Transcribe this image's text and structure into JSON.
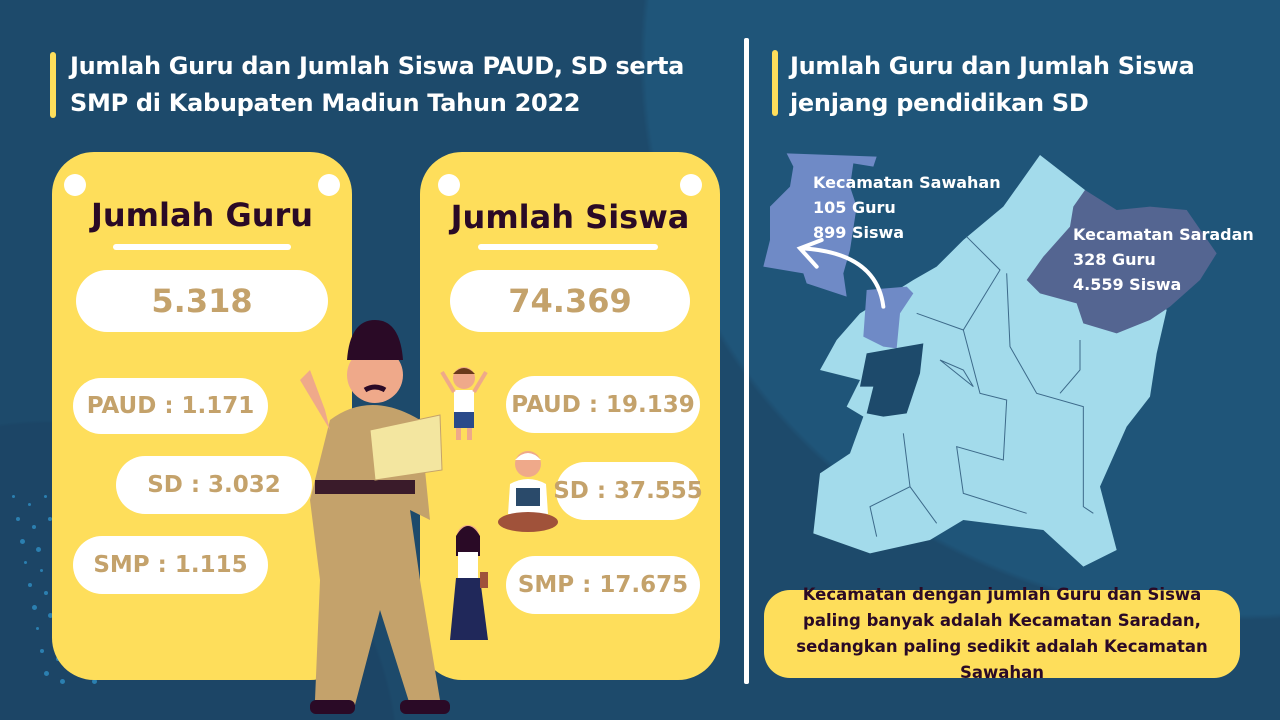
{
  "left": {
    "title": "Jumlah Guru dan Jumlah Siswa PAUD, SD serta SMP di Kabupaten Madiun Tahun 2022",
    "guru_card": {
      "heading": "Jumlah Guru",
      "total": "5.318",
      "items": [
        "PAUD : 1.171",
        "SD : 3.032",
        "SMP : 1.115"
      ]
    },
    "siswa_card": {
      "heading": "Jumlah Siswa",
      "total": "74.369",
      "items": [
        "PAUD : 19.139",
        "SD : 37.555",
        "SMP : 17.675"
      ]
    }
  },
  "right": {
    "title": "Jumlah Guru dan Jumlah Siswa jenjang pendidikan SD",
    "sawahan": {
      "name": "Kecamatan Sawahan",
      "guru": "105 Guru",
      "siswa": "899 Siswa"
    },
    "saradan": {
      "name": "Kecamatan Saradan",
      "guru": "328 Guru",
      "siswa": "4.559 Siswa"
    },
    "callout": "Kecamatan dengan jumlah Guru dan Siswa paling banyak adalah Kecamatan Saradan, sedangkan paling sedikit adalah Kecamatan Sawahan"
  },
  "colors": {
    "background": "#1d4a6b",
    "card": "#fede5b",
    "value_text": "#c4a26b",
    "map_region": "#a3dbeb",
    "sawahan": "#6f8ac6",
    "saradan": "#546591"
  }
}
